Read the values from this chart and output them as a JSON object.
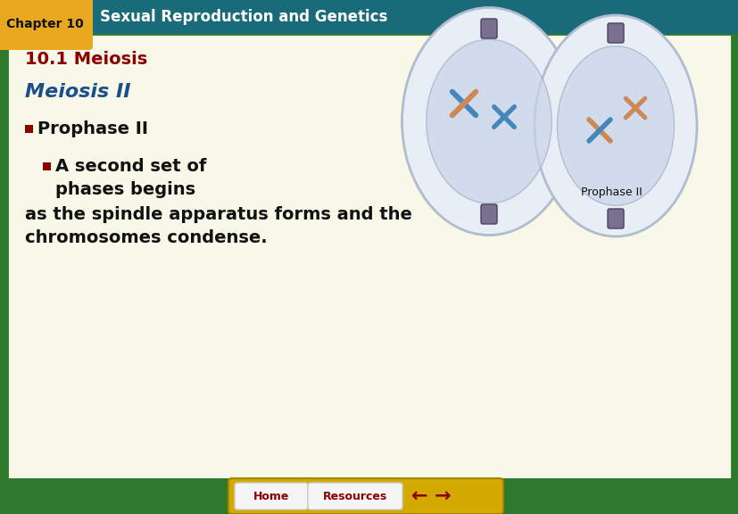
{
  "header_bg_color": "#1a6b7a",
  "chapter_badge_color": "#e8a820",
  "chapter_badge_text_color": "#111111",
  "chapter_text": "Chapter 10",
  "header_text": "Sexual Reproduction and Genetics",
  "header_text_color": "#ffffff",
  "body_bg_color": "#f8f8e8",
  "outer_border_color": "#2d7a2d",
  "section_title": "10.1 Meiosis",
  "section_title_color": "#8b0000",
  "h2_title": "Meiosis II",
  "h2_color": "#1a4f8a",
  "bullet1_square_color": "#8b0000",
  "bullet1_text": "Prophase II",
  "bullet1_color": "#111111",
  "bullet2_square_color": "#8b0000",
  "bullet2_line1": "■ A second set of",
  "bullet2_line2": "   phases begins",
  "bullet2_line3": "   as the spindle apparatus forms and the",
  "bullet2_line4": "   chromosomes condense.",
  "bullet2_color": "#111111",
  "image_caption": "Prophase II",
  "image_caption_color": "#111111",
  "footer_bg_color": "#d4aa00",
  "footer_btn1_text": "Home",
  "footer_btn2_text": "Resources",
  "footer_btn_text_color": "#8b0000",
  "footer_arrow_color": "#8b0000",
  "cell_outer_color": "#dce8f0",
  "cell_inner_color": "#c0cce0",
  "spindle_color": "#7a7090",
  "chr_blue": "#4488bb",
  "chr_orange": "#cc8855"
}
